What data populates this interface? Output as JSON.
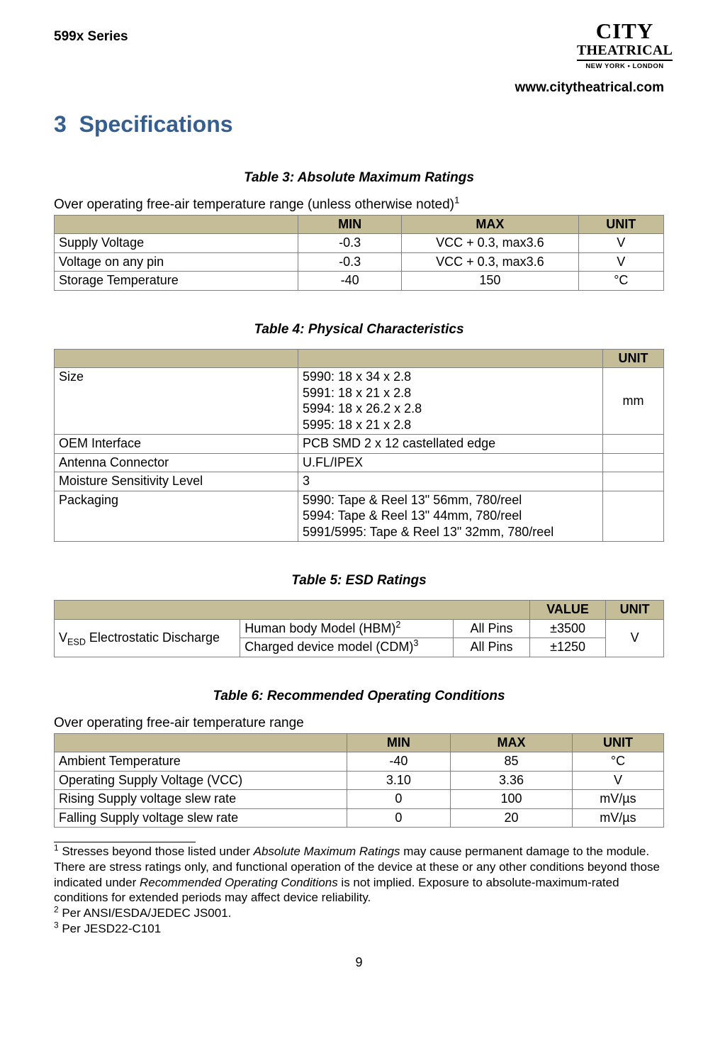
{
  "header": {
    "series": "599x Series",
    "logo_top": "CITY",
    "logo_bottom": "THEATRICAL",
    "logo_cities": "NEW YORK  •  LONDON",
    "website": "www.citytheatrical.com"
  },
  "section": {
    "number": "3",
    "title": "Specifications"
  },
  "table3": {
    "caption": "Table 3: Absolute Maximum Ratings",
    "note_pre": "Over operating free-air temperature range (unless otherwise noted)",
    "note_sup": "1",
    "columns": [
      "",
      "MIN",
      "MAX",
      "UNIT"
    ],
    "rows": [
      {
        "param": "Supply Voltage",
        "min": "-0.3",
        "max": "VCC + 0.3, max3.6",
        "unit": "V"
      },
      {
        "param": "Voltage on any pin",
        "min": "-0.3",
        "max": "VCC + 0.3, max3.6",
        "unit": "V"
      },
      {
        "param": "Storage Temperature",
        "min": "-40",
        "max": "150",
        "unit": "°C"
      }
    ],
    "col_widths": [
      "40%",
      "17%",
      "29%",
      "14%"
    ]
  },
  "table4": {
    "caption": "Table 4: Physical Characteristics",
    "columns": [
      "",
      "",
      "UNIT"
    ],
    "rows": [
      {
        "param": "Size",
        "value": "5990: 18 x 34 x 2.8\n5991: 18 x 21 x 2.8\n5994: 18 x 26.2 x 2.8\n5995: 18 x 21 x 2.8",
        "unit": "mm"
      },
      {
        "param": "OEM Interface",
        "value": "PCB SMD 2 x 12 castellated edge",
        "unit": ""
      },
      {
        "param": "Antenna Connector",
        "value": "U.FL/IPEX",
        "unit": ""
      },
      {
        "param": "Moisture Sensitivity Level",
        "value": "3",
        "unit": ""
      },
      {
        "param": "Packaging",
        "value": "5990: Tape & Reel 13\" 56mm, 780/reel\n5994: Tape & Reel 13\" 44mm, 780/reel\n5991/5995: Tape & Reel 13\" 32mm, 780/reel",
        "unit": ""
      }
    ],
    "col_widths": [
      "40%",
      "50%",
      "10%"
    ]
  },
  "table5": {
    "caption": "Table 5: ESD Ratings",
    "columns": [
      "",
      "",
      "",
      "VALUE",
      "UNIT"
    ],
    "row_label_pre": "V",
    "row_label_sub": "ESD",
    "row_label_post": "  Electrostatic Discharge",
    "rows": [
      {
        "model_pre": "Human body Model (HBM)",
        "model_sup": "2",
        "pins": "All Pins",
        "value": "±3500"
      },
      {
        "model_pre": "Charged device model (CDM)",
        "model_sup": "3",
        "pins": "All Pins",
        "value": "±1250"
      }
    ],
    "unit": "V",
    "col_widths": [
      "30.5%",
      "35%",
      "12.5%",
      "12.5%",
      "9.5%"
    ]
  },
  "table6": {
    "caption": "Table 6: Recommended Operating Conditions",
    "note": "Over operating free-air temperature range",
    "columns": [
      "",
      "MIN",
      "MAX",
      "UNIT"
    ],
    "rows": [
      {
        "param": "Ambient Temperature",
        "min": "-40",
        "max": "85",
        "unit": "°C"
      },
      {
        "param": "Operating Supply Voltage (VCC)",
        "min": "3.10",
        "max": "3.36",
        "unit": "V"
      },
      {
        "param": "Rising Supply voltage slew rate",
        "min": "0",
        "max": "100",
        "unit": "mV/µs"
      },
      {
        "param": "Falling Supply voltage slew rate",
        "min": "0",
        "max": "20",
        "unit": "mV/µs"
      }
    ],
    "col_widths": [
      "48%",
      "17%",
      "20%",
      "15%"
    ]
  },
  "footnotes": {
    "f1_sup": "1",
    "f1_a": " Stresses beyond those listed under ",
    "f1_em1": "Absolute Maximum Ratings",
    "f1_b": " may cause permanent damage to the module.  There are stress ratings only, and functional operation of the device at these or any other conditions beyond those indicated under ",
    "f1_em2": "Recommended Operating Conditions",
    "f1_c": " is not implied.  Exposure to absolute-maximum-rated conditions for extended periods may affect device reliability.",
    "f2_sup": "2",
    "f2": " Per ANSI/ESDA/JEDEC JS001.",
    "f3_sup": "3",
    "f3": " Per JESD22-C101"
  },
  "page_number": "9",
  "styling": {
    "header_bg": "#c4bd97",
    "border_color": "#7f7f7f",
    "section_color": "#365f91",
    "text_color": "#000000",
    "bg_color": "#ffffff",
    "body_fontsize": 18,
    "caption_fontsize": 19,
    "section_fontsize": 32
  }
}
